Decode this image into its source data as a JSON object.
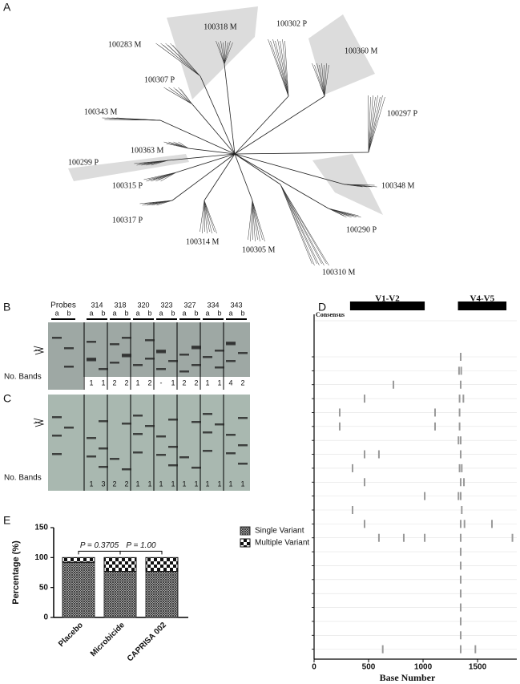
{
  "panel_labels": [
    "A",
    "B",
    "C",
    "D",
    "E"
  ],
  "tree": {
    "labels": [
      "100318 M",
      "100302 P",
      "100283 M",
      "100360 M",
      "100307 P",
      "100297 P",
      "100343 M",
      "100363 M",
      "100299 P",
      "100348 M",
      "100315 P",
      "100317 P",
      "100290 P",
      "100314 M",
      "100305 M",
      "100310 M"
    ]
  },
  "gels": {
    "probes": "Probes",
    "lane_sub": [
      "a",
      "b"
    ],
    "lanes": [
      "314",
      "318",
      "320",
      "323",
      "327",
      "334",
      "343"
    ],
    "band_label": "No. Bands",
    "B": [
      "1",
      "1",
      "2",
      "2",
      "1",
      "2",
      "-",
      "1",
      "2",
      "2",
      "1",
      "1",
      "4",
      "2"
    ],
    "C": [
      "1",
      "3",
      "2",
      "2",
      "1",
      "1",
      "1",
      "1",
      "1",
      "1",
      "1",
      "1",
      "1",
      "1"
    ]
  },
  "chart_data": [
    {
      "type": "highlighter",
      "regions": [
        {
          "label": "V1-V2",
          "start": 330,
          "end": 1015
        },
        {
          "label": "V4-V5",
          "start": 1320,
          "end": 1765
        }
      ],
      "reference": "Consensus",
      "xlabel": "Base Number",
      "xlim": [
        0,
        1860
      ],
      "xticks": [
        0,
        500,
        1000,
        1500
      ],
      "color": "#9a9a9a",
      "rows": [
        [
          1345
        ],
        [
          1330,
          1350
        ],
        [
          728,
          1345
        ],
        [
          463,
          1335,
          1370
        ],
        [
          235,
          1110,
          1335
        ],
        [
          235,
          1110,
          1335
        ],
        [
          1325,
          1345
        ],
        [
          463,
          595,
          1345
        ],
        [
          353,
          1335,
          1355
        ],
        [
          463,
          1345,
          1375
        ],
        [
          1015,
          1325,
          1345
        ],
        [
          353,
          1355
        ],
        [
          463,
          1345,
          1380,
          1632
        ],
        [
          595,
          823,
          1015,
          1345,
          1820
        ],
        [
          1345
        ],
        [
          1345
        ],
        [
          1345
        ],
        [
          1345
        ],
        [
          1345
        ],
        [
          1345
        ],
        [
          1345
        ],
        [
          630,
          1345,
          1480
        ]
      ]
    },
    {
      "type": "stacked-bar",
      "ylabel": "Percentage (%)",
      "categories": [
        "Placebo",
        "Microbicide",
        "CAPRISA 002"
      ],
      "series": [
        {
          "name": "Single Variant",
          "color": "#333333",
          "values": [
            92,
            77,
            77
          ]
        },
        {
          "name": "Multiple Variant",
          "color": "#111111",
          "values": [
            8,
            23,
            23
          ]
        }
      ],
      "ylim": [
        0,
        150
      ],
      "yticks": [
        0,
        50,
        100,
        150
      ],
      "annotations": [
        "P = 0.3705",
        "P = 1.00"
      ]
    }
  ]
}
